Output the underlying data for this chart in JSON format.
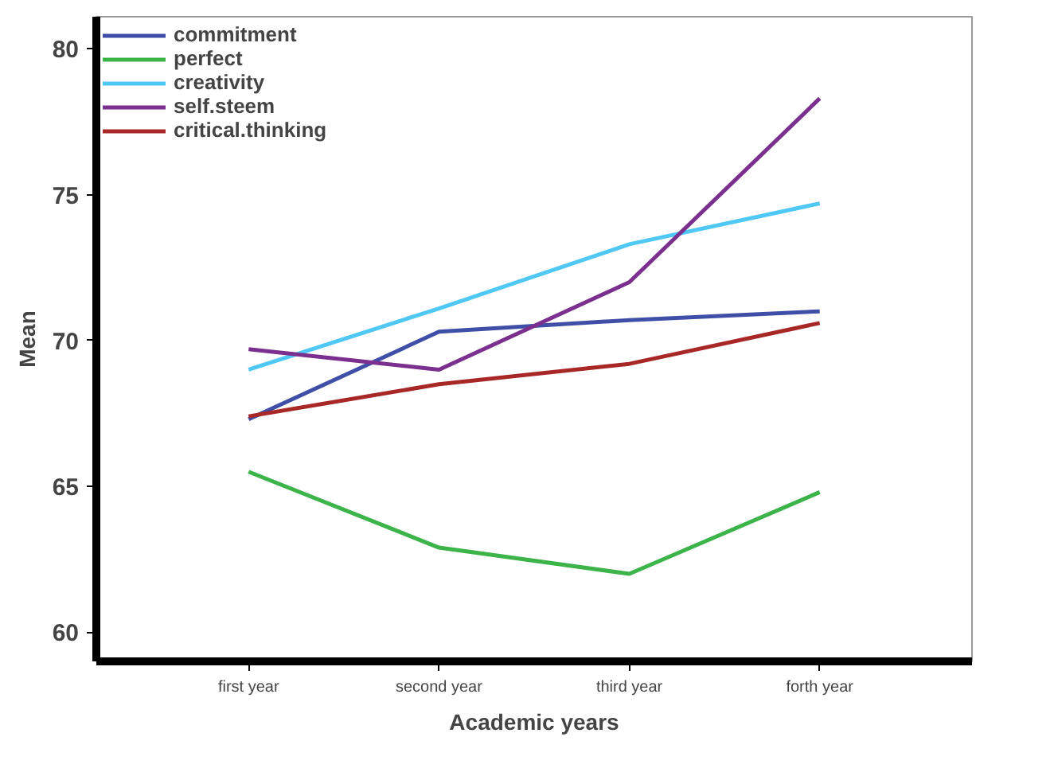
{
  "chart_data": {
    "type": "line",
    "xlabel": "Academic years",
    "ylabel": "Mean",
    "categories": [
      "first year",
      "second year",
      "third year",
      "forth year"
    ],
    "series": [
      {
        "name": "commitment",
        "color": "#3f4fa8",
        "values": [
          67.3,
          70.3,
          70.7,
          71.0
        ]
      },
      {
        "name": "perfect",
        "color": "#3cb44a",
        "values": [
          65.5,
          62.9,
          62.0,
          64.8
        ]
      },
      {
        "name": "creativity",
        "color": "#4fc8f5",
        "values": [
          69.0,
          71.1,
          73.3,
          74.7
        ]
      },
      {
        "name": "self.steem",
        "color": "#7b2f8e",
        "values": [
          69.7,
          69.0,
          72.0,
          78.3
        ]
      },
      {
        "name": "critical.thinking",
        "color": "#a82828",
        "values": [
          67.4,
          68.5,
          69.2,
          70.6
        ]
      }
    ],
    "ylim": [
      59,
      81.1
    ],
    "yticks": [
      60,
      65,
      70,
      75,
      80
    ],
    "grid": false,
    "legend": "top left",
    "marker": "none",
    "line_style": "solid"
  }
}
